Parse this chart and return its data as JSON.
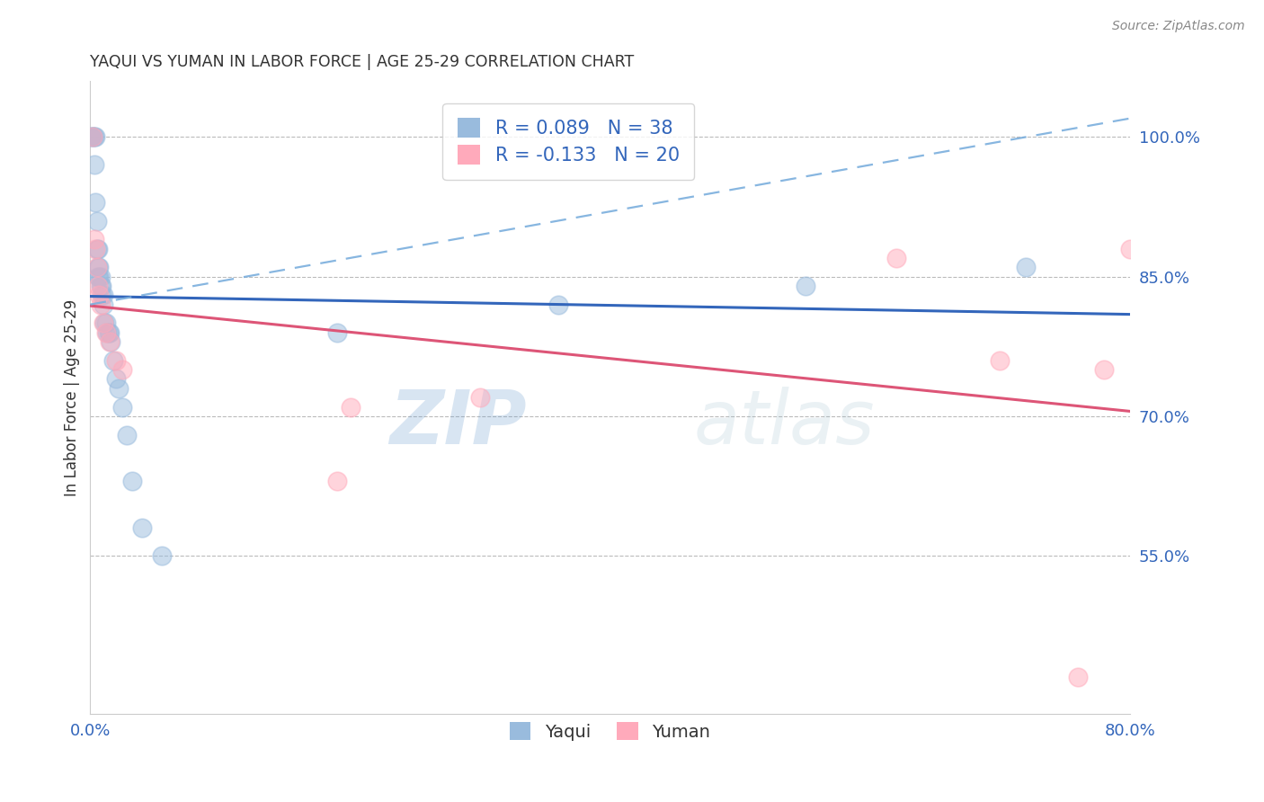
{
  "title": "YAQUI VS YUMAN IN LABOR FORCE | AGE 25-29 CORRELATION CHART",
  "source": "Source: ZipAtlas.com",
  "ylabel": "In Labor Force | Age 25-29",
  "x_min": 0.0,
  "x_max": 0.8,
  "y_min": 0.38,
  "y_max": 1.06,
  "yaqui_color": "#99BBDD",
  "yuman_color": "#FFAABB",
  "yaqui_line_color": "#3366BB",
  "yuman_line_color": "#DD5577",
  "dash_color": "#7AAEDD",
  "right_yticks": [
    0.55,
    0.7,
    0.85,
    1.0
  ],
  "right_ytick_labels": [
    "55.0%",
    "70.0%",
    "85.0%",
    "100.0%"
  ],
  "yaqui_x": [
    0.001,
    0.002,
    0.002,
    0.003,
    0.003,
    0.004,
    0.004,
    0.005,
    0.005,
    0.006,
    0.006,
    0.006,
    0.007,
    0.007,
    0.008,
    0.008,
    0.009,
    0.009,
    0.01,
    0.01,
    0.011,
    0.012,
    0.013,
    0.014,
    0.015,
    0.016,
    0.018,
    0.02,
    0.022,
    0.025,
    0.028,
    0.032,
    0.04,
    0.055,
    0.19,
    0.36,
    0.55,
    0.72
  ],
  "yaqui_y": [
    1.0,
    1.0,
    1.0,
    1.0,
    0.97,
    1.0,
    0.93,
    0.91,
    0.88,
    0.88,
    0.86,
    0.85,
    0.86,
    0.85,
    0.85,
    0.84,
    0.84,
    0.83,
    0.83,
    0.82,
    0.8,
    0.8,
    0.79,
    0.79,
    0.79,
    0.78,
    0.76,
    0.74,
    0.73,
    0.71,
    0.68,
    0.63,
    0.58,
    0.55,
    0.79,
    0.82,
    0.84,
    0.86
  ],
  "yuman_x": [
    0.002,
    0.003,
    0.004,
    0.005,
    0.006,
    0.007,
    0.008,
    0.01,
    0.012,
    0.015,
    0.02,
    0.025,
    0.19,
    0.3,
    0.2,
    0.62,
    0.7,
    0.76,
    0.78,
    0.8
  ],
  "yuman_y": [
    1.0,
    0.89,
    0.88,
    0.86,
    0.84,
    0.83,
    0.82,
    0.8,
    0.79,
    0.78,
    0.76,
    0.75,
    0.63,
    0.72,
    0.71,
    0.87,
    0.76,
    0.42,
    0.75,
    0.88
  ],
  "legend_yaqui_label": "R = 0.089   N = 38",
  "legend_yuman_label": "R = -0.133   N = 20",
  "watermark_zip": "ZIP",
  "watermark_atlas": "atlas"
}
